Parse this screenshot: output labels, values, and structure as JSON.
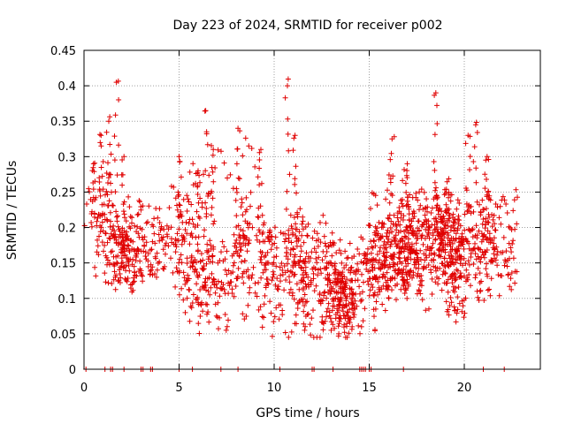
{
  "chart_data": {
    "type": "scatter",
    "title": "Day 223 of 2024, SRMTID for receiver p002",
    "xlabel": "GPS time / hours",
    "ylabel": "SRMTID / TECUs",
    "xlim": [
      0,
      24
    ],
    "ylim": [
      0,
      0.45
    ],
    "xticks": [
      0,
      5,
      10,
      15,
      20
    ],
    "xtick_labels": [
      "0",
      "5",
      "10",
      "15",
      "20"
    ],
    "yticks": [
      0,
      0.05,
      0.1,
      0.15,
      0.2,
      0.25,
      0.3,
      0.35,
      0.4,
      0.45
    ],
    "ytick_labels": [
      "0",
      "0.05",
      "0.1",
      "0.15",
      "0.2",
      "0.25",
      "0.3",
      "0.35",
      "0.4",
      "0.45"
    ],
    "grid": true,
    "legend": "none",
    "marker": "+",
    "color": "#e00000",
    "x_extent_hours": [
      0,
      22.8
    ],
    "series": [
      {
        "name": "SRMTID p002",
        "envelope": {
          "x": [
            0,
            0.5,
            1.0,
            1.6,
            2.0,
            2.5,
            3.0,
            3.5,
            4.0,
            4.5,
            5.0,
            5.5,
            6.0,
            6.5,
            7.0,
            7.5,
            8.0,
            8.5,
            9.0,
            9.5,
            10.0,
            10.5,
            11.0,
            11.5,
            12.0,
            12.5,
            13.0,
            13.5,
            14.0,
            14.5,
            15.0,
            15.5,
            16.0,
            16.5,
            17.0,
            17.5,
            18.0,
            18.5,
            19.0,
            19.5,
            20.0,
            20.5,
            21.0,
            21.5,
            22.0,
            22.8
          ],
          "mean": [
            0.19,
            0.2,
            0.19,
            0.18,
            0.17,
            0.16,
            0.16,
            0.16,
            0.17,
            0.17,
            0.16,
            0.16,
            0.17,
            0.17,
            0.16,
            0.16,
            0.17,
            0.17,
            0.17,
            0.17,
            0.16,
            0.16,
            0.15,
            0.15,
            0.14,
            0.14,
            0.13,
            0.12,
            0.12,
            0.13,
            0.15,
            0.15,
            0.16,
            0.17,
            0.17,
            0.16,
            0.17,
            0.18,
            0.18,
            0.17,
            0.17,
            0.17,
            0.18,
            0.18,
            0.18,
            0.18
          ],
          "spread": [
            0.05,
            0.06,
            0.06,
            0.06,
            0.05,
            0.05,
            0.05,
            0.05,
            0.05,
            0.05,
            0.05,
            0.05,
            0.06,
            0.06,
            0.05,
            0.05,
            0.05,
            0.05,
            0.05,
            0.05,
            0.05,
            0.05,
            0.05,
            0.05,
            0.05,
            0.05,
            0.05,
            0.05,
            0.05,
            0.05,
            0.05,
            0.05,
            0.05,
            0.05,
            0.05,
            0.05,
            0.05,
            0.05,
            0.05,
            0.05,
            0.05,
            0.05,
            0.05,
            0.05,
            0.04,
            0.04
          ]
        },
        "peaks": [
          {
            "x": 0.5,
            "y": 0.29
          },
          {
            "x": 0.9,
            "y": 0.33
          },
          {
            "x": 1.3,
            "y": 0.35
          },
          {
            "x": 1.7,
            "y": 0.405
          },
          {
            "x": 2.1,
            "y": 0.3
          },
          {
            "x": 5.0,
            "y": 0.3
          },
          {
            "x": 6.0,
            "y": 0.28
          },
          {
            "x": 6.4,
            "y": 0.365
          },
          {
            "x": 6.8,
            "y": 0.31
          },
          {
            "x": 8.1,
            "y": 0.34
          },
          {
            "x": 9.3,
            "y": 0.31
          },
          {
            "x": 10.7,
            "y": 0.4
          },
          {
            "x": 11.1,
            "y": 0.33
          },
          {
            "x": 16.2,
            "y": 0.325
          },
          {
            "x": 17.0,
            "y": 0.29
          },
          {
            "x": 18.5,
            "y": 0.39
          },
          {
            "x": 20.2,
            "y": 0.33
          },
          {
            "x": 20.6,
            "y": 0.345
          },
          {
            "x": 21.2,
            "y": 0.3
          },
          {
            "x": 13.4,
            "y": 0.05
          },
          {
            "x": 13.7,
            "y": 0.052
          },
          {
            "x": 14.1,
            "y": 0.06
          },
          {
            "x": 11.6,
            "y": 0.055
          },
          {
            "x": 15.3,
            "y": 0.056
          }
        ],
        "zero_points_x": [
          0.1,
          1.1,
          1.4,
          1.5,
          2.1,
          3.0,
          3.1,
          3.5,
          3.6,
          5.0,
          5.7,
          7.2,
          8.1,
          10.3,
          12.0,
          12.1,
          13.1,
          14.5,
          14.6,
          14.7,
          14.8,
          15.0,
          15.1,
          16.8,
          21.0,
          22.1
        ]
      }
    ]
  }
}
